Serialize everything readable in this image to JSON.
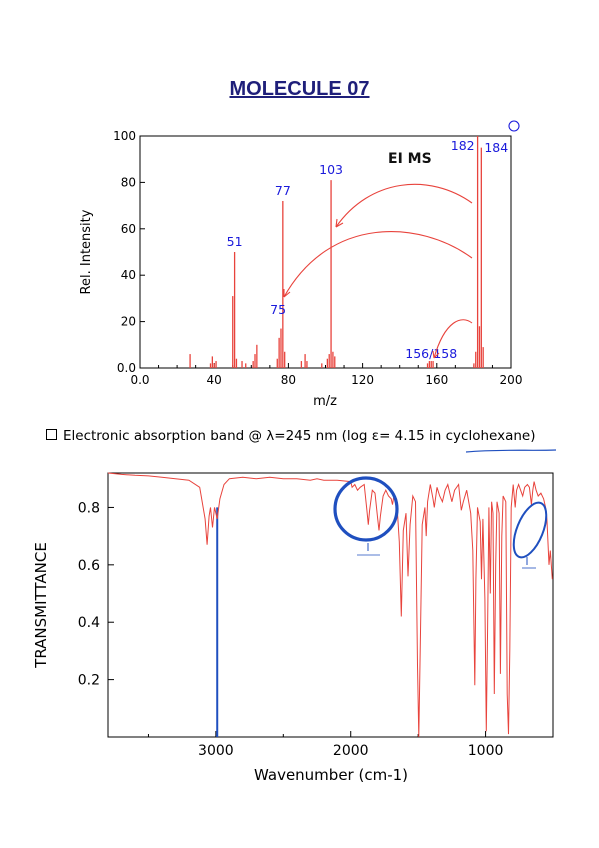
{
  "title": "MOLECULE 07",
  "uv_note": "Electronic absorption band @ λ=245 nm (log ε= 4.15 in cyclohexane)",
  "colors": {
    "title": "#1f1f7a",
    "ms_peaks": "#e8433c",
    "ms_labels": "#1a1adb",
    "ir_line": "#e8433c",
    "annotation": "#1f4fbf"
  },
  "chart_data": [
    {
      "type": "bar",
      "title": "",
      "inset_label": "EI MS",
      "xlabel": "m/z",
      "ylabel": "Rel. Intensity",
      "xlim": [
        0,
        200
      ],
      "ylim": [
        0,
        100
      ],
      "xticks": [
        "0.0",
        "40",
        "80",
        "120",
        "160",
        "200"
      ],
      "yticks": [
        "0.0",
        "20",
        "40",
        "60",
        "80",
        "100"
      ],
      "grid": false,
      "peaks": [
        [
          27,
          6
        ],
        [
          38,
          2
        ],
        [
          39,
          5
        ],
        [
          40,
          2
        ],
        [
          41,
          3
        ],
        [
          50,
          31
        ],
        [
          51,
          50
        ],
        [
          52,
          4
        ],
        [
          55,
          3
        ],
        [
          57,
          2
        ],
        [
          61,
          3
        ],
        [
          62,
          6
        ],
        [
          63,
          10
        ],
        [
          74,
          4
        ],
        [
          75,
          13
        ],
        [
          76,
          17
        ],
        [
          77,
          72
        ],
        [
          78,
          7
        ],
        [
          87,
          3
        ],
        [
          89,
          6
        ],
        [
          90,
          3
        ],
        [
          98,
          2
        ],
        [
          101,
          4
        ],
        [
          102,
          6
        ],
        [
          103,
          81
        ],
        [
          104,
          7
        ],
        [
          105,
          5
        ],
        [
          155,
          2
        ],
        [
          156,
          3
        ],
        [
          157,
          3
        ],
        [
          158,
          3
        ],
        [
          180,
          2
        ],
        [
          181,
          7
        ],
        [
          182,
          100
        ],
        [
          183,
          18
        ],
        [
          184,
          95
        ],
        [
          185,
          9
        ]
      ],
      "peak_labels": [
        {
          "mz": 51,
          "text": "51"
        },
        {
          "mz": 77,
          "text": "77"
        },
        {
          "mz": 103,
          "text": "103"
        },
        {
          "mz": 75,
          "text": "75"
        },
        {
          "mz": 182,
          "text": "182"
        },
        {
          "mz": 184,
          "text": "184"
        },
        {
          "mz": 157,
          "text": "156/158"
        }
      ]
    },
    {
      "type": "line",
      "title": "",
      "xlabel": "Wavenumber (cm-1)",
      "ylabel": "TRANSMITTANCE",
      "xlim": [
        3800,
        500
      ],
      "ylim": [
        0,
        0.92
      ],
      "xticks": [
        "3000",
        "2000",
        "1000"
      ],
      "yticks": [
        "0.8",
        "0.6",
        "0.4",
        "0.2"
      ],
      "grid": false,
      "marker_line_wavenumber": 2990,
      "points": [
        [
          3800,
          0.92
        ],
        [
          3700,
          0.915
        ],
        [
          3600,
          0.912
        ],
        [
          3500,
          0.91
        ],
        [
          3400,
          0.905
        ],
        [
          3300,
          0.9
        ],
        [
          3200,
          0.895
        ],
        [
          3120,
          0.87
        ],
        [
          3080,
          0.76
        ],
        [
          3065,
          0.67
        ],
        [
          3050,
          0.77
        ],
        [
          3040,
          0.8
        ],
        [
          3025,
          0.73
        ],
        [
          3010,
          0.8
        ],
        [
          2990,
          0.76
        ],
        [
          2970,
          0.83
        ],
        [
          2940,
          0.88
        ],
        [
          2900,
          0.9
        ],
        [
          2800,
          0.905
        ],
        [
          2700,
          0.9
        ],
        [
          2600,
          0.905
        ],
        [
          2500,
          0.9
        ],
        [
          2400,
          0.9
        ],
        [
          2300,
          0.895
        ],
        [
          2250,
          0.9
        ],
        [
          2200,
          0.895
        ],
        [
          2100,
          0.895
        ],
        [
          2000,
          0.89
        ],
        [
          1990,
          0.87
        ],
        [
          1970,
          0.88
        ],
        [
          1950,
          0.86
        ],
        [
          1930,
          0.87
        ],
        [
          1900,
          0.88
        ],
        [
          1880,
          0.79
        ],
        [
          1870,
          0.74
        ],
        [
          1860,
          0.79
        ],
        [
          1840,
          0.86
        ],
        [
          1820,
          0.85
        ],
        [
          1800,
          0.76
        ],
        [
          1790,
          0.72
        ],
        [
          1780,
          0.77
        ],
        [
          1760,
          0.84
        ],
        [
          1740,
          0.86
        ],
        [
          1720,
          0.84
        ],
        [
          1700,
          0.83
        ],
        [
          1690,
          0.81
        ],
        [
          1680,
          0.84
        ],
        [
          1660,
          0.83
        ],
        [
          1640,
          0.68
        ],
        [
          1625,
          0.42
        ],
        [
          1610,
          0.72
        ],
        [
          1590,
          0.78
        ],
        [
          1575,
          0.56
        ],
        [
          1560,
          0.74
        ],
        [
          1540,
          0.84
        ],
        [
          1520,
          0.82
        ],
        [
          1505,
          0.25
        ],
        [
          1495,
          0.0
        ],
        [
          1485,
          0.3
        ],
        [
          1470,
          0.74
        ],
        [
          1450,
          0.8
        ],
        [
          1440,
          0.7
        ],
        [
          1430,
          0.82
        ],
        [
          1410,
          0.88
        ],
        [
          1390,
          0.83
        ],
        [
          1380,
          0.8
        ],
        [
          1360,
          0.87
        ],
        [
          1340,
          0.84
        ],
        [
          1320,
          0.82
        ],
        [
          1300,
          0.86
        ],
        [
          1280,
          0.88
        ],
        [
          1260,
          0.84
        ],
        [
          1250,
          0.82
        ],
        [
          1230,
          0.86
        ],
        [
          1200,
          0.88
        ],
        [
          1180,
          0.79
        ],
        [
          1165,
          0.82
        ],
        [
          1140,
          0.86
        ],
        [
          1110,
          0.78
        ],
        [
          1095,
          0.65
        ],
        [
          1080,
          0.18
        ],
        [
          1072,
          0.55
        ],
        [
          1060,
          0.8
        ],
        [
          1040,
          0.75
        ],
        [
          1030,
          0.55
        ],
        [
          1020,
          0.76
        ],
        [
          1005,
          0.48
        ],
        [
          995,
          0.02
        ],
        [
          985,
          0.38
        ],
        [
          975,
          0.8
        ],
        [
          965,
          0.5
        ],
        [
          955,
          0.82
        ],
        [
          945,
          0.78
        ],
        [
          935,
          0.15
        ],
        [
          925,
          0.6
        ],
        [
          915,
          0.82
        ],
        [
          900,
          0.78
        ],
        [
          890,
          0.22
        ],
        [
          880,
          0.7
        ],
        [
          870,
          0.84
        ],
        [
          850,
          0.82
        ],
        [
          840,
          0.15
        ],
        [
          830,
          0.01
        ],
        [
          820,
          0.3
        ],
        [
          810,
          0.8
        ],
        [
          795,
          0.88
        ],
        [
          780,
          0.8
        ],
        [
          770,
          0.86
        ],
        [
          755,
          0.88
        ],
        [
          740,
          0.86
        ],
        [
          725,
          0.84
        ],
        [
          710,
          0.87
        ],
        [
          690,
          0.88
        ],
        [
          675,
          0.87
        ],
        [
          660,
          0.81
        ],
        [
          650,
          0.86
        ],
        [
          640,
          0.89
        ],
        [
          625,
          0.86
        ],
        [
          610,
          0.84
        ],
        [
          590,
          0.85
        ],
        [
          570,
          0.83
        ],
        [
          555,
          0.8
        ],
        [
          545,
          0.76
        ],
        [
          530,
          0.6
        ],
        [
          520,
          0.65
        ],
        [
          505,
          0.55
        ]
      ]
    }
  ]
}
